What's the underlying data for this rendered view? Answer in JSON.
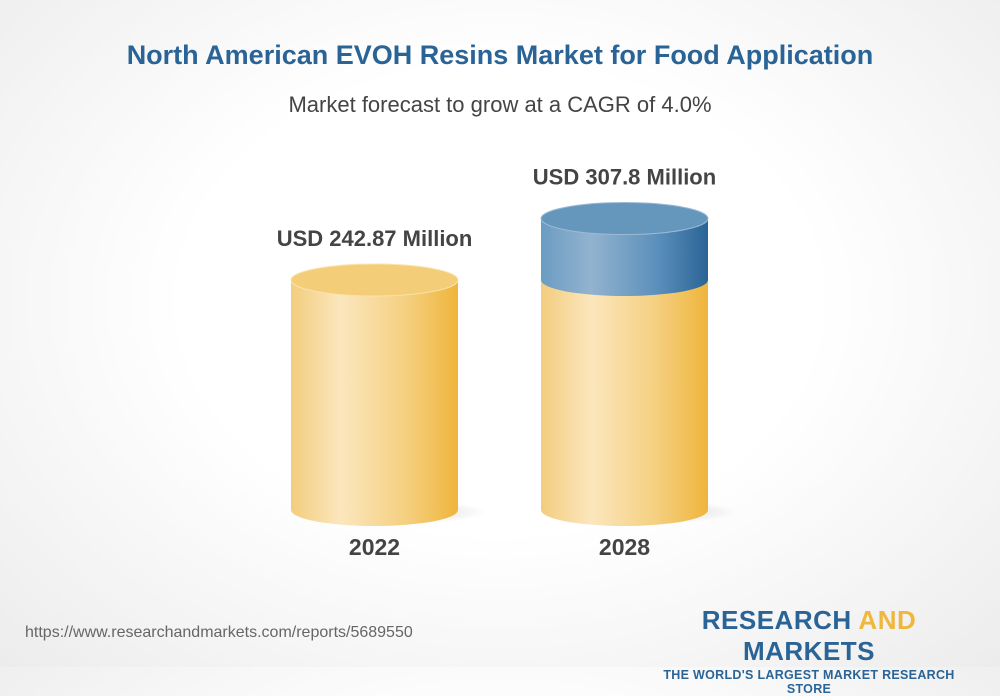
{
  "chart_data": {
    "type": "bar",
    "style": "3d-cylinder",
    "title": "North American EVOH Resins Market for Food Application",
    "subtitle": "Market forecast to grow at a CAGR of 4.0%",
    "categories": [
      "2022",
      "2028"
    ],
    "values": [
      242.87,
      307.8
    ],
    "data_labels": [
      "USD 242.87 Million",
      "USD 307.8 Million"
    ],
    "unit": "USD Million",
    "grid": false,
    "colors": {
      "base": "#f0b73e",
      "growth": "#2a6496",
      "title": "#2a6496"
    }
  },
  "footer": {
    "url": "https://www.researchandmarkets.com/reports/5689550",
    "logo_research": "RESEARCH",
    "logo_and": "AND",
    "logo_markets": "MARKETS",
    "logo_tagline": "THE WORLD'S LARGEST MARKET RESEARCH STORE"
  }
}
